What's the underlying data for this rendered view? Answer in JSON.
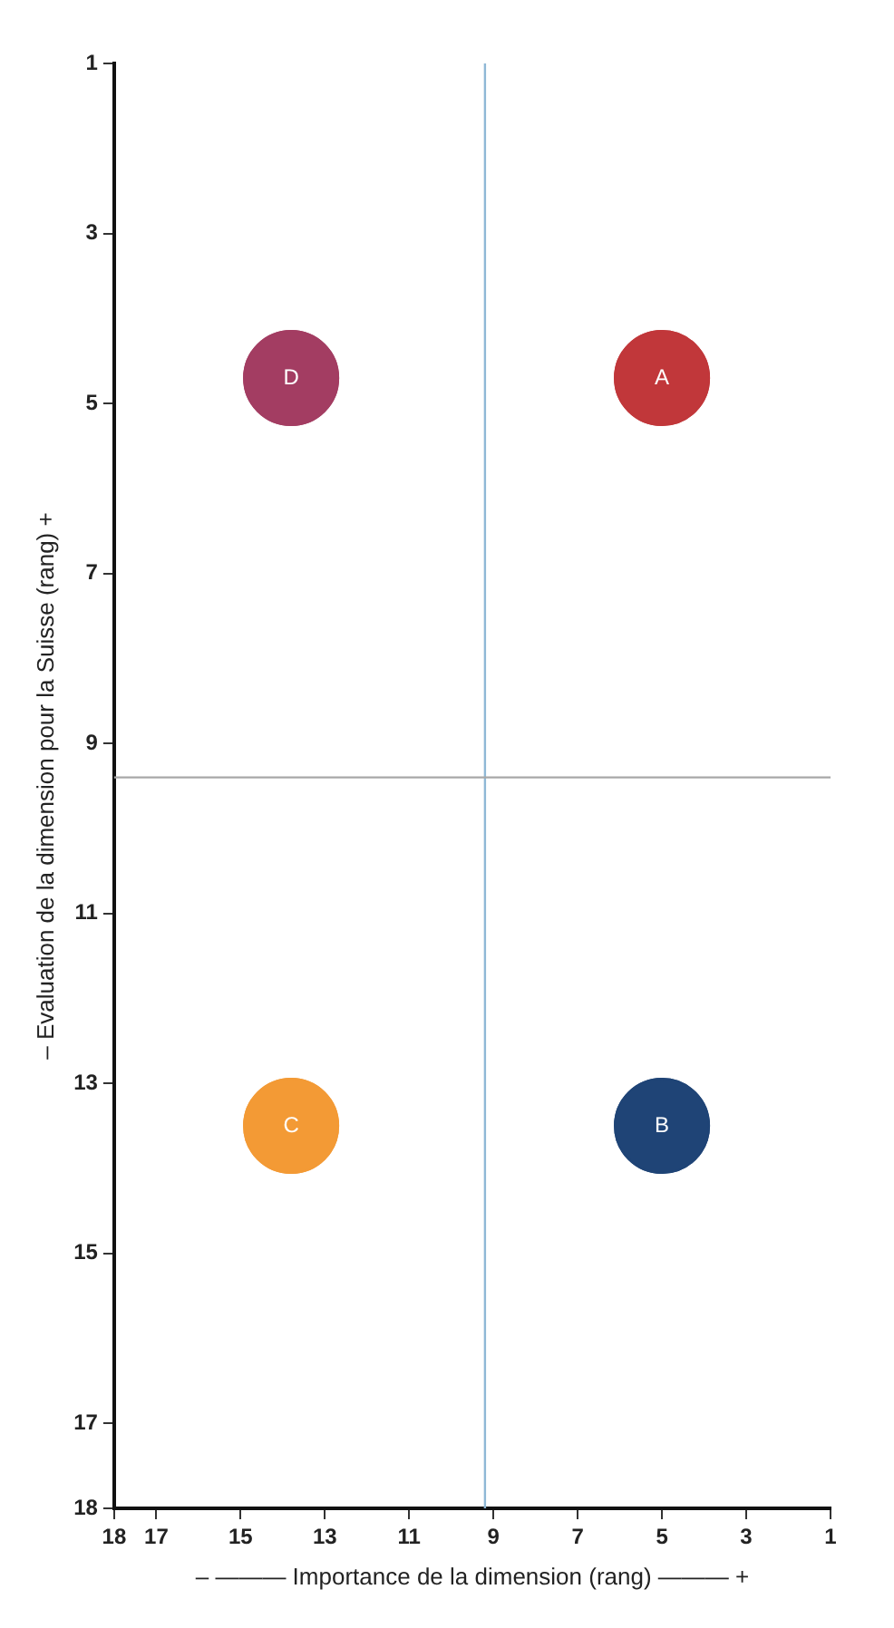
{
  "chart_data": {
    "type": "scatter",
    "xlabel": "– ——— Importance de la dimension (rang) ——— +",
    "ylabel": "– Evaluation de la dimension pour la Suisse (rang) +",
    "xlim": [
      18,
      1
    ],
    "xticks": [
      1,
      3,
      5,
      7,
      9,
      11,
      13,
      15,
      17,
      18
    ],
    "ylim": [
      18,
      1
    ],
    "yticks": [
      1,
      3,
      5,
      7,
      9,
      11,
      13,
      15,
      17,
      18
    ],
    "grid": false,
    "legend": false,
    "marker": "circle",
    "x": [
      5,
      13.8
    ],
    "series": [
      {
        "name": "A",
        "color": "#c1373a",
        "values": [
          4.7,
          null
        ]
      },
      {
        "name": "B",
        "color": "#1f4476",
        "values": [
          13.5,
          null
        ]
      },
      {
        "name": "C",
        "color": "#f39a35",
        "values": [
          null,
          13.5
        ]
      },
      {
        "name": "D",
        "color": "#a33d62",
        "values": [
          null,
          4.7
        ]
      }
    ],
    "ref_lines": [
      {
        "axis": "x",
        "value": 9.2,
        "color": "#8fb8d6"
      },
      {
        "axis": "y",
        "value": 9.4,
        "color": "#a8a8a8"
      }
    ]
  }
}
